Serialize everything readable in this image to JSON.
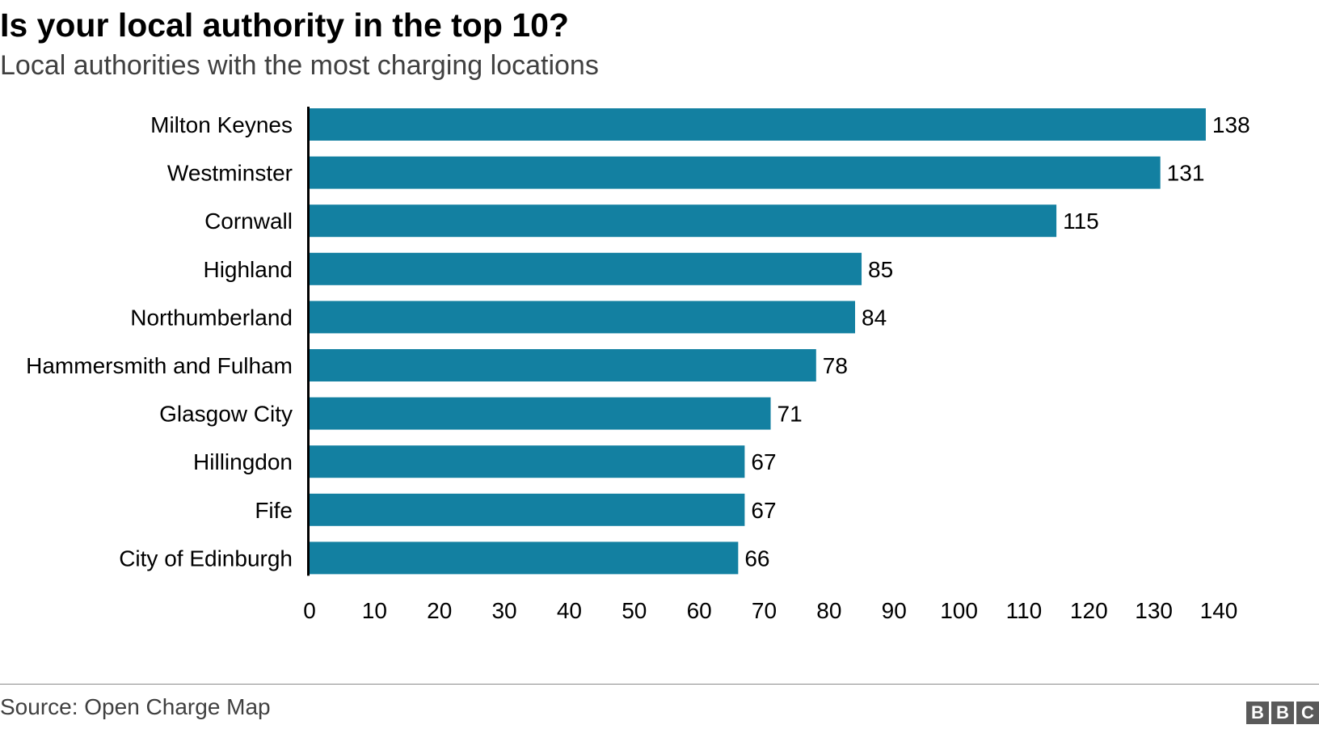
{
  "title": "Is your local authority in the top 10?",
  "subtitle": "Local authorities with the most charging locations",
  "source": "Source: Open Charge Map",
  "logo": {
    "letters": [
      "B",
      "B",
      "C"
    ]
  },
  "colors": {
    "bar": "#1380a1",
    "axis": "#000000"
  },
  "chart_data": {
    "type": "bar",
    "orientation": "horizontal",
    "categories": [
      "Milton Keynes",
      "Westminster",
      "Cornwall",
      "Highland",
      "Northumberland",
      "Hammersmith and Fulham",
      "Glasgow City",
      "Hillingdon",
      "Fife",
      "City of Edinburgh"
    ],
    "values": [
      138,
      131,
      115,
      85,
      84,
      78,
      71,
      67,
      67,
      66
    ],
    "data_labels": [
      "138",
      "131",
      "115",
      "85",
      "84",
      "78",
      "71",
      "67",
      "67",
      "66"
    ],
    "xlim": [
      0,
      140
    ],
    "xticks": [
      0,
      10,
      20,
      30,
      40,
      50,
      60,
      70,
      80,
      90,
      100,
      110,
      120,
      130,
      140
    ],
    "grid": false,
    "legend": "none"
  }
}
